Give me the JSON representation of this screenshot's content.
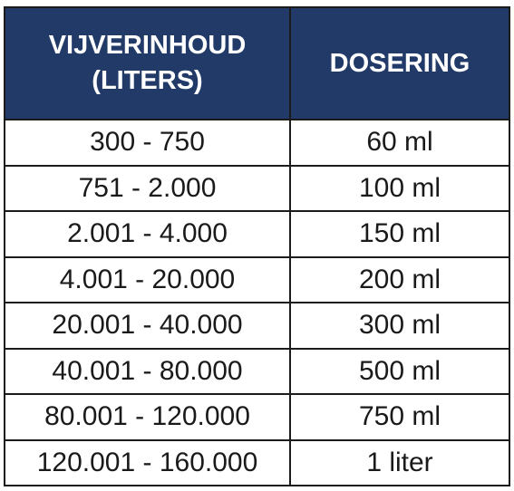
{
  "table": {
    "header": {
      "volume_line1": "VIJVERINHOUD",
      "volume_line2": "(LITERS)",
      "dosage": "DOSERING"
    },
    "header_color": "#223a68",
    "rows": [
      {
        "volume": "300 - 750",
        "dosage": "60 ml"
      },
      {
        "volume": "751 - 2.000",
        "dosage": "100 ml"
      },
      {
        "volume": "2.001 - 4.000",
        "dosage": "150 ml"
      },
      {
        "volume": "4.001 - 20.000",
        "dosage": "200 ml"
      },
      {
        "volume": "20.001 - 40.000",
        "dosage": "300 ml"
      },
      {
        "volume": "40.001 - 80.000",
        "dosage": "500 ml"
      },
      {
        "volume": "80.001 - 120.000",
        "dosage": "750 ml"
      },
      {
        "volume": "120.001 - 160.000",
        "dosage": "1 liter"
      }
    ]
  }
}
